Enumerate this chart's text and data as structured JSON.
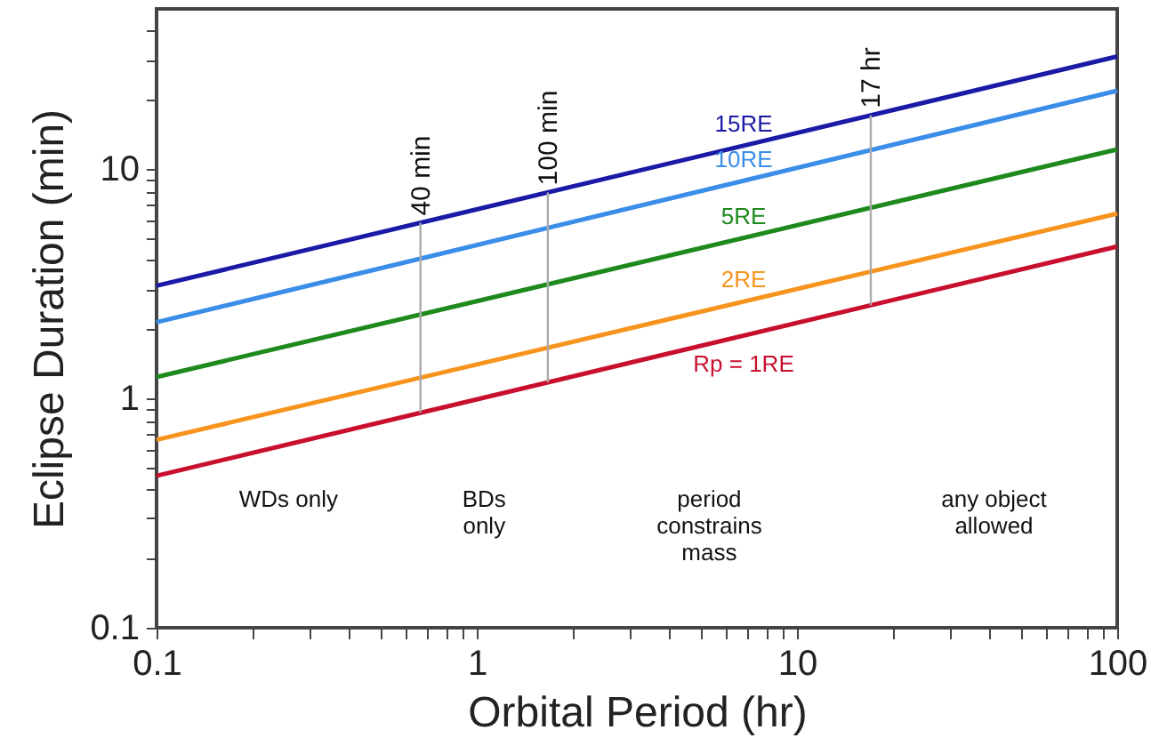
{
  "chart_data": {
    "type": "line",
    "xlabel": "Orbital Period (hr)",
    "ylabel": "Eclipse Duration (min)",
    "log": "xy",
    "grid": false,
    "marker": "none",
    "line_style": "solid",
    "xlim": [
      0.1,
      100
    ],
    "ylim": [
      0.1,
      50
    ],
    "xticks": [
      0.1,
      {
        "value": 0.2,
        "label": null
      },
      {
        "value": 0.3,
        "label": null
      },
      {
        "value": 0.4,
        "label": null
      },
      {
        "value": 0.5,
        "label": null
      },
      {
        "value": 0.6,
        "label": null
      },
      {
        "value": 0.7,
        "label": null
      },
      {
        "value": 0.8,
        "label": null
      },
      {
        "value": 0.9,
        "label": null
      },
      1,
      {
        "value": 2,
        "label": null
      },
      {
        "value": 3,
        "label": null
      },
      {
        "value": 4,
        "label": null
      },
      {
        "value": 5,
        "label": null
      },
      {
        "value": 6,
        "label": null
      },
      {
        "value": 7,
        "label": null
      },
      {
        "value": 8,
        "label": null
      },
      {
        "value": 9,
        "label": null
      },
      10,
      {
        "value": 20,
        "label": null
      },
      {
        "value": 30,
        "label": null
      },
      {
        "value": 40,
        "label": null
      },
      {
        "value": 50,
        "label": null
      },
      {
        "value": 60,
        "label": null
      },
      {
        "value": 70,
        "label": null
      },
      {
        "value": 80,
        "label": null
      },
      {
        "value": 90,
        "label": null
      },
      100
    ],
    "yticks": [
      0.1,
      {
        "value": 0.2,
        "label": null
      },
      {
        "value": 0.3,
        "label": null
      },
      {
        "value": 0.4,
        "label": null
      },
      {
        "value": 0.5,
        "label": null
      },
      {
        "value": 0.6,
        "label": null
      },
      {
        "value": 0.7,
        "label": null
      },
      {
        "value": 0.8,
        "label": null
      },
      {
        "value": 0.9,
        "label": null
      },
      1,
      {
        "value": 2,
        "label": null
      },
      {
        "value": 3,
        "label": null
      },
      {
        "value": 4,
        "label": null
      },
      {
        "value": 5,
        "label": null
      },
      {
        "value": 6,
        "label": null
      },
      {
        "value": 7,
        "label": null
      },
      {
        "value": 8,
        "label": null
      },
      {
        "value": 9,
        "label": null
      },
      10,
      {
        "value": 20,
        "label": null
      },
      {
        "value": 30,
        "label": null
      },
      {
        "value": 40,
        "label": null
      }
    ],
    "x": [
      0.1,
      100
    ],
    "series": [
      {
        "name": "15RE",
        "color": "#1a1aa6",
        "values": [
          3.1,
          31
        ]
      },
      {
        "name": "10RE",
        "color": "#3a8ee8",
        "values": [
          2.15,
          22
        ]
      },
      {
        "name": "5RE",
        "color": "#1e8a1e",
        "values": [
          1.24,
          12.2
        ]
      },
      {
        "name": "2RE",
        "color": "#f7941d",
        "values": [
          0.66,
          6.4
        ]
      },
      {
        "name": "Rp = 1RE",
        "color": "#c8102e",
        "values": [
          0.46,
          4.6
        ]
      }
    ],
    "ref_lines": [
      {
        "axis": "x",
        "value": 0.667,
        "label": "40 min",
        "color": "#aaaaaa"
      },
      {
        "axis": "x",
        "value": 1.667,
        "label": "100 min",
        "color": "#aaaaaa"
      },
      {
        "axis": "x",
        "value": 17,
        "label": "17 hr",
        "color": "#aaaaaa"
      }
    ],
    "annotations": [
      "WDs only",
      "BDs\nonly",
      "period\nconstrains\nmass",
      "any object\nallowed"
    ]
  }
}
